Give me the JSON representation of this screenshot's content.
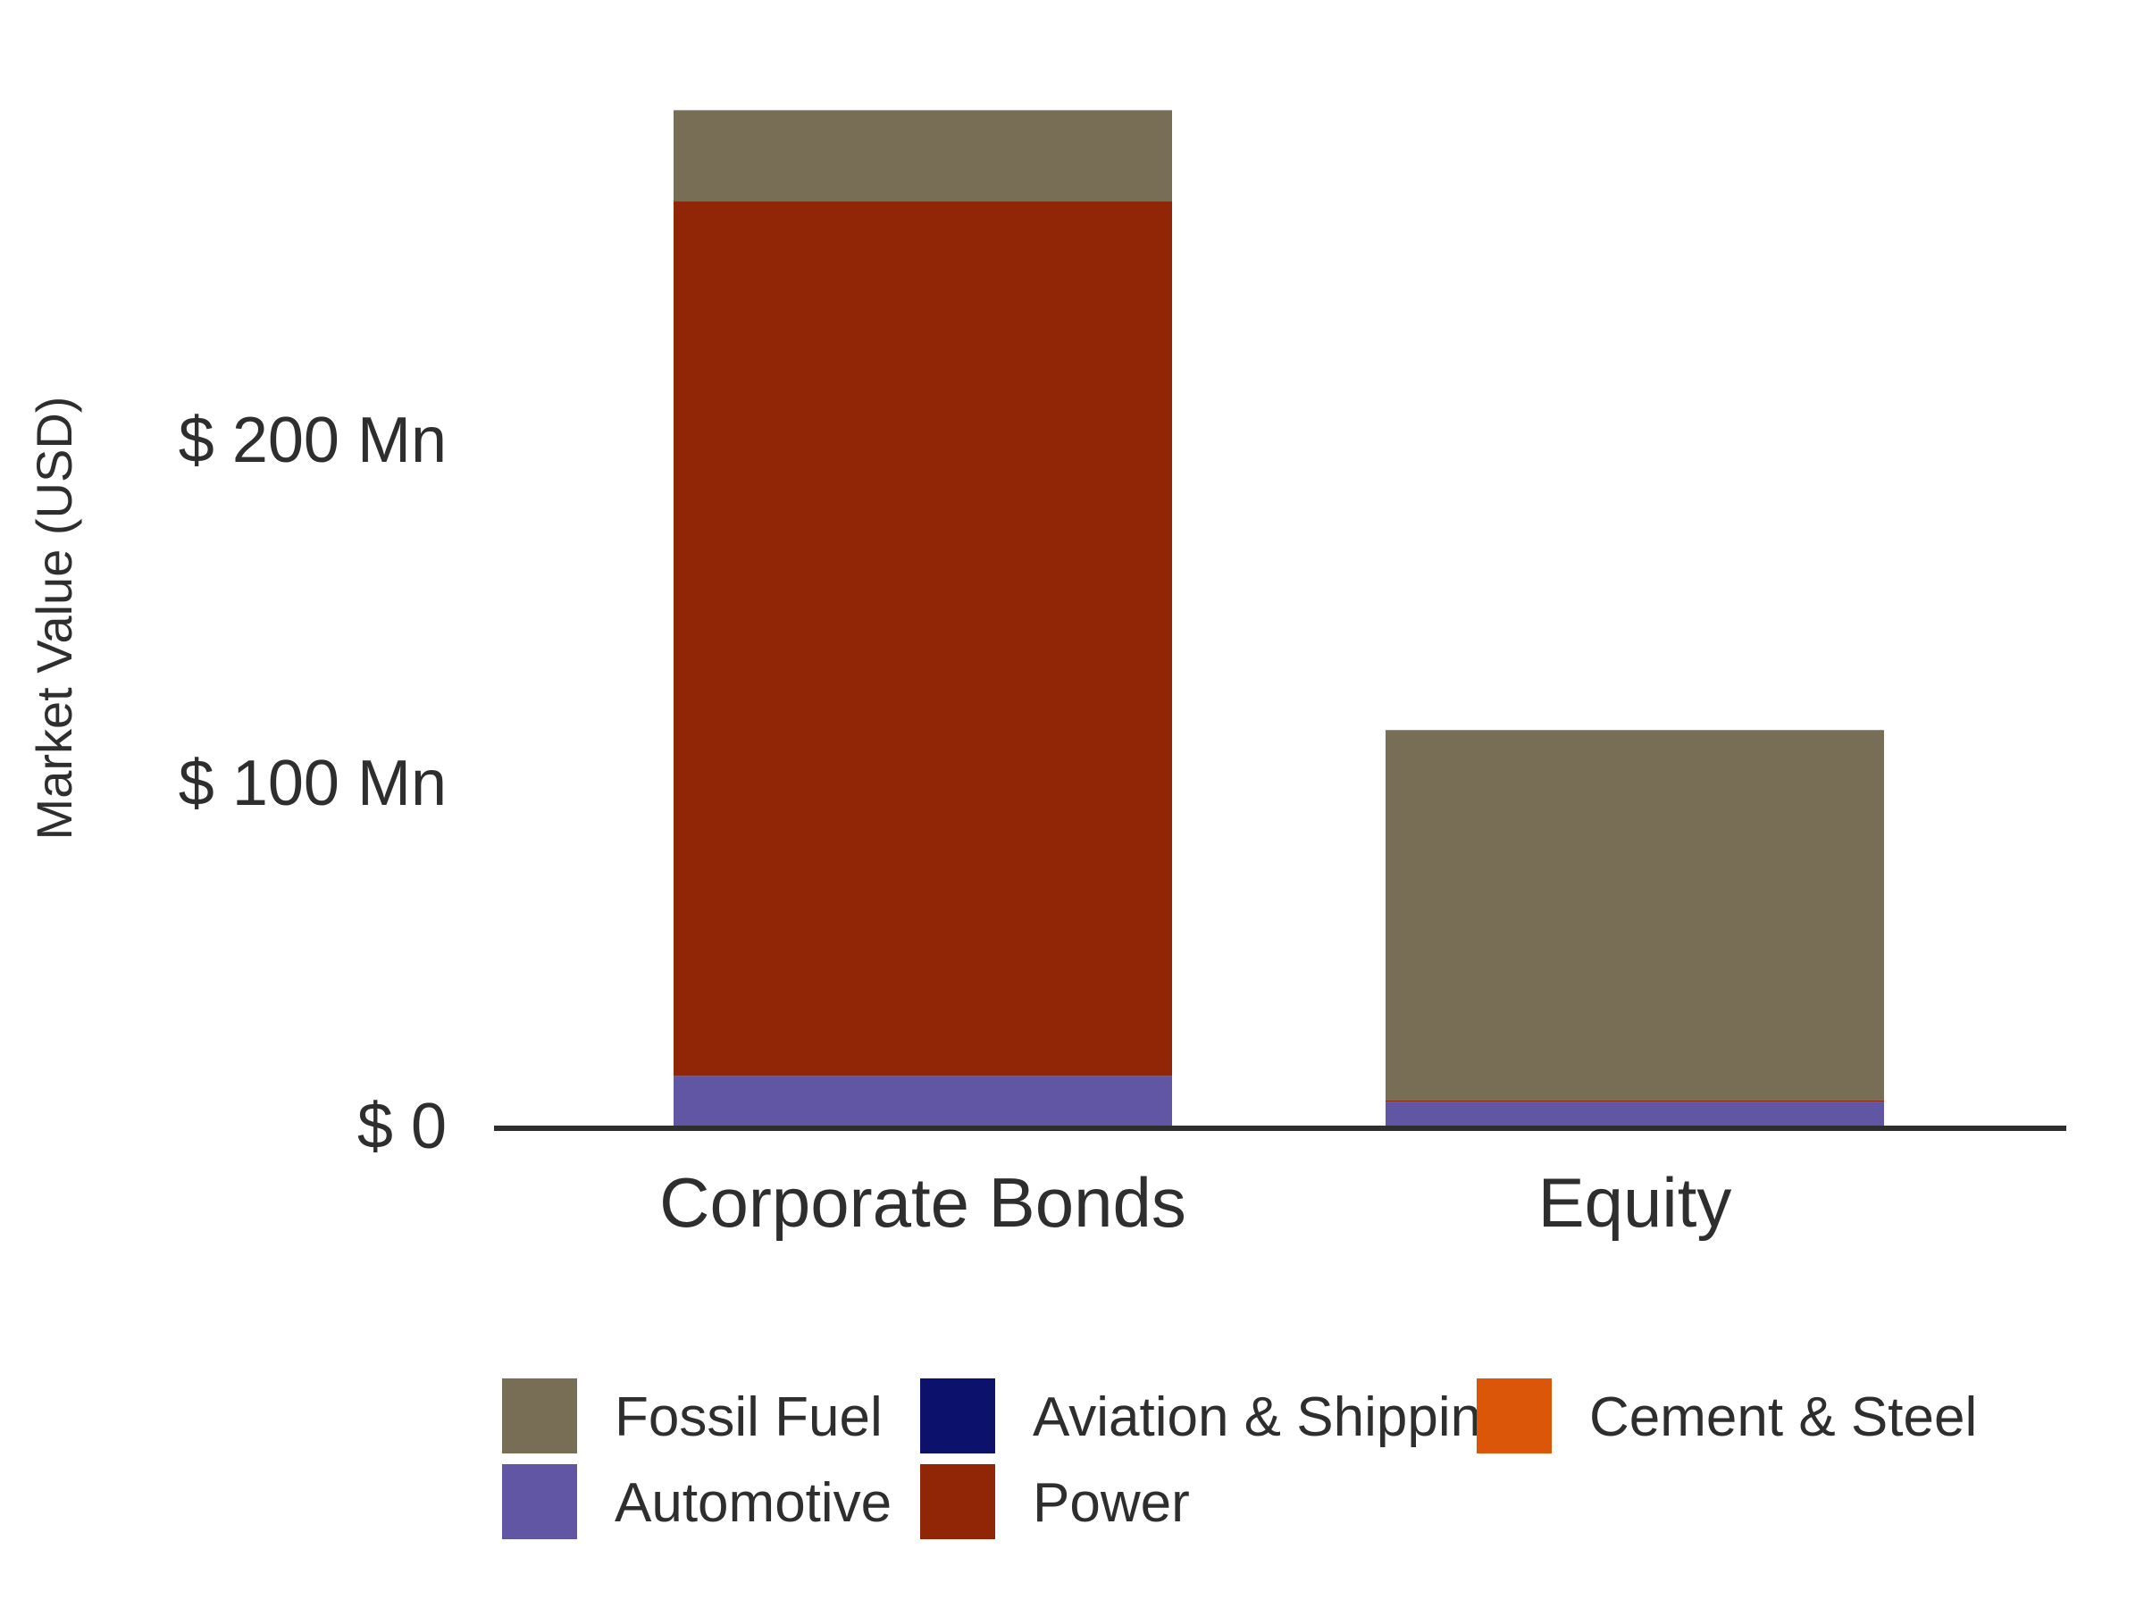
{
  "chart_data": {
    "type": "bar",
    "stacked": true,
    "title": "",
    "xlabel": "",
    "ylabel": "Market Value (USD)",
    "categories": [
      "Corporate Bonds",
      "Equity"
    ],
    "ylim": [
      0,
      300
    ],
    "y_ticks": [
      {
        "value": 0,
        "label": "$ 0"
      },
      {
        "value": 100,
        "label": "$ 100 Mn"
      },
      {
        "value": 200,
        "label": "$ 200 Mn"
      }
    ],
    "grid": false,
    "legend_position": "bottom",
    "series": [
      {
        "name": "Automotive",
        "color": "#6156a3",
        "values": [
          14.5,
          7
        ]
      },
      {
        "name": "Aviation & Shipping",
        "color": "#0c116b",
        "values": [
          0,
          0
        ]
      },
      {
        "name": "Cement & Steel",
        "color": "#dc560a",
        "values": [
          0,
          0
        ]
      },
      {
        "name": "Power",
        "color": "#912607",
        "values": [
          255,
          0.3
        ]
      },
      {
        "name": "Fossil Fuel",
        "color": "#786d55",
        "values": [
          26.5,
          108
        ]
      }
    ],
    "legend_order": [
      "Fossil Fuel",
      "Automotive",
      "Aviation & Shipping",
      "Power",
      "Cement & Steel"
    ]
  }
}
